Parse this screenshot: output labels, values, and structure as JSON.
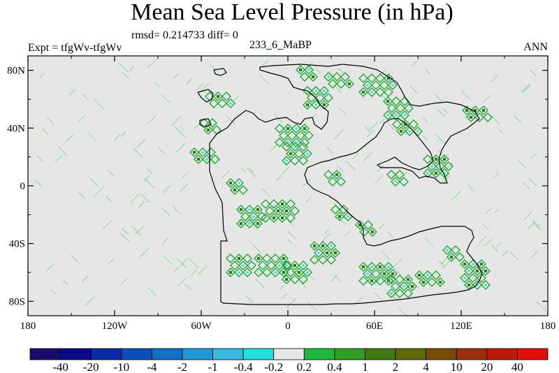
{
  "chart_data": {
    "type": "heatmap",
    "title": "Mean Sea Level Pressure (in hPa)",
    "stats_text": "rmsd= 0.214733 diff= 0",
    "experiment_label": "Expt = tfgWv-tfgWv",
    "run_label": "233_6_MaBP",
    "period_label": "ANN",
    "x_ticks": [
      "180",
      "120W",
      "60W",
      "0",
      "60E",
      "120E",
      "180"
    ],
    "y_ticks": [
      "80N",
      "40N",
      "0",
      "40S",
      "80S"
    ],
    "xlim": [
      -180,
      180
    ],
    "ylim": [
      -90,
      90
    ],
    "colorbar": {
      "labels": [
        "-40",
        "-20",
        "-10",
        "-4",
        "-2",
        "-1",
        "-0.4",
        "-0.2",
        "0.2",
        "0.4",
        "1",
        "2",
        "4",
        "10",
        "20",
        "40"
      ],
      "colors": [
        "#1b0a6e",
        "#0a0a8c",
        "#0b2aa6",
        "#0a4fb8",
        "#1070c8",
        "#1f97d6",
        "#3ab8e2",
        "#22dde0",
        "#e6e6e6",
        "#1fb83c",
        "#2f9e22",
        "#3f7a10",
        "#5e6a08",
        "#7a4a06",
        "#9a3005",
        "#bb1c05",
        "#e01005"
      ]
    },
    "background_color": "#e6e6e6",
    "coastline_color": "#000000",
    "positive_anomaly_color": "#1fb83c",
    "negative_anomaly_color": "#22dde0"
  }
}
